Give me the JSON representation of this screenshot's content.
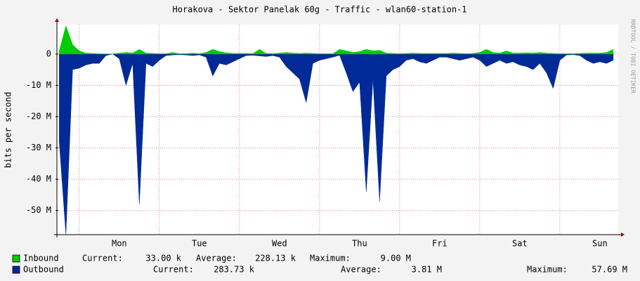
{
  "chart_data": {
    "type": "area",
    "title": "Horakova - Sektor Panelak 60g - Traffic - wlan60-station-1",
    "y_label": "bits per second",
    "watermark": "RRDTOOL / TOBI OETIKER",
    "grid": true,
    "xlim": [
      -6.7,
      161.5
    ],
    "xticks": [
      {
        "value": 12,
        "label": "Mon"
      },
      {
        "value": 36,
        "label": "Tue"
      },
      {
        "value": 60,
        "label": "Wed"
      },
      {
        "value": 84,
        "label": "Thu"
      },
      {
        "value": 108,
        "label": "Fri"
      },
      {
        "value": 132,
        "label": "Sat"
      },
      {
        "value": 156,
        "label": "Sun"
      }
    ],
    "xgrid": [
      0,
      24,
      48,
      72,
      96,
      120,
      144
    ],
    "ylim": [
      -57700000,
      9400000
    ],
    "yticks": [
      0,
      {
        "value": -10000000,
        "label": "-10 M"
      },
      {
        "value": -20000000,
        "label": "-20 M"
      },
      {
        "value": -30000000,
        "label": "-30 M"
      },
      {
        "value": -40000000,
        "label": "-40 M"
      },
      {
        "value": -50000000,
        "label": "-50 M"
      }
    ],
    "x": [
      -6,
      -4,
      -2,
      0,
      2,
      4,
      6,
      8,
      10,
      12,
      14,
      16,
      18,
      20,
      22,
      24,
      26,
      28,
      30,
      32,
      34,
      36,
      38,
      40,
      42,
      44,
      46,
      48,
      50,
      52,
      54,
      56,
      58,
      60,
      62,
      64,
      66,
      68,
      70,
      72,
      74,
      76,
      78,
      80,
      82,
      84,
      86,
      88,
      90,
      92,
      94,
      96,
      98,
      100,
      102,
      104,
      106,
      108,
      110,
      112,
      114,
      116,
      118,
      120,
      122,
      124,
      126,
      128,
      130,
      132,
      134,
      136,
      138,
      140,
      142,
      144,
      146,
      148,
      150,
      152,
      154,
      156,
      158,
      160
    ],
    "series": [
      {
        "name": "Inbound",
        "color": "#00cc00",
        "values": [
          1000000,
          9000000,
          3000000,
          1000000,
          300000,
          200000,
          100000,
          0,
          0,
          300000,
          500000,
          300000,
          1500000,
          300000,
          200000,
          100000,
          100000,
          500000,
          100000,
          100000,
          300000,
          100000,
          500000,
          1500000,
          800000,
          400000,
          200000,
          200000,
          200000,
          100000,
          1500000,
          200000,
          100000,
          300000,
          500000,
          300000,
          200000,
          300000,
          200000,
          100000,
          100000,
          100000,
          1500000,
          1000000,
          500000,
          800000,
          1500000,
          1000000,
          1200000,
          300000,
          200000,
          100000,
          200000,
          300000,
          200000,
          200000,
          200000,
          200000,
          200000,
          300000,
          200000,
          100000,
          200000,
          500000,
          1500000,
          500000,
          300000,
          1000000,
          300000,
          300000,
          400000,
          300000,
          500000,
          300000,
          200000,
          100000,
          100000,
          100000,
          200000,
          300000,
          300000,
          300000,
          500000,
          1500000
        ],
        "stats": [
          {
            "label": "Current:",
            "value": "33.00 k"
          },
          {
            "label": "Average:",
            "value": "228.13 k"
          },
          {
            "label": "Maximum:",
            "value": "9.00 M"
          }
        ]
      },
      {
        "name": "Outbound",
        "color": "#002a97",
        "values": [
          -28000000,
          -57690000,
          -5000000,
          -4500000,
          -3500000,
          -3000000,
          -3000000,
          -500000,
          0,
          -1500000,
          -10000000,
          -3000000,
          -48000000,
          -3000000,
          -4000000,
          -2000000,
          -500000,
          -300000,
          -200000,
          -300000,
          -500000,
          -300000,
          -1000000,
          -7000000,
          -3000000,
          -3500000,
          -2500000,
          -1500000,
          -500000,
          -400000,
          -600000,
          -800000,
          -500000,
          -1000000,
          -4000000,
          -6000000,
          -8000000,
          -15500000,
          -3000000,
          -2000000,
          -1500000,
          -1000000,
          -400000,
          -6000000,
          -12000000,
          -9000000,
          -44000000,
          -8000000,
          -47000000,
          -7000000,
          -5000000,
          -4000000,
          -2000000,
          -1500000,
          -2500000,
          -3000000,
          -2000000,
          -1000000,
          -1000000,
          -1500000,
          -2000000,
          -1500000,
          -1000000,
          -2000000,
          -4000000,
          -3000000,
          -2000000,
          -3000000,
          -2500000,
          -3500000,
          -4000000,
          -5000000,
          -3000000,
          -6000000,
          -11000000,
          -2000000,
          -300000,
          -200000,
          -500000,
          -2000000,
          -3000000,
          -2500000,
          -3000000,
          -2000000
        ],
        "stats": [
          {
            "label": "Current:",
            "value": "283.73 k"
          },
          {
            "label": "Average:",
            "value": "3.81 M"
          },
          {
            "label": "Maximum:",
            "value": "57.69 M"
          }
        ]
      }
    ]
  }
}
